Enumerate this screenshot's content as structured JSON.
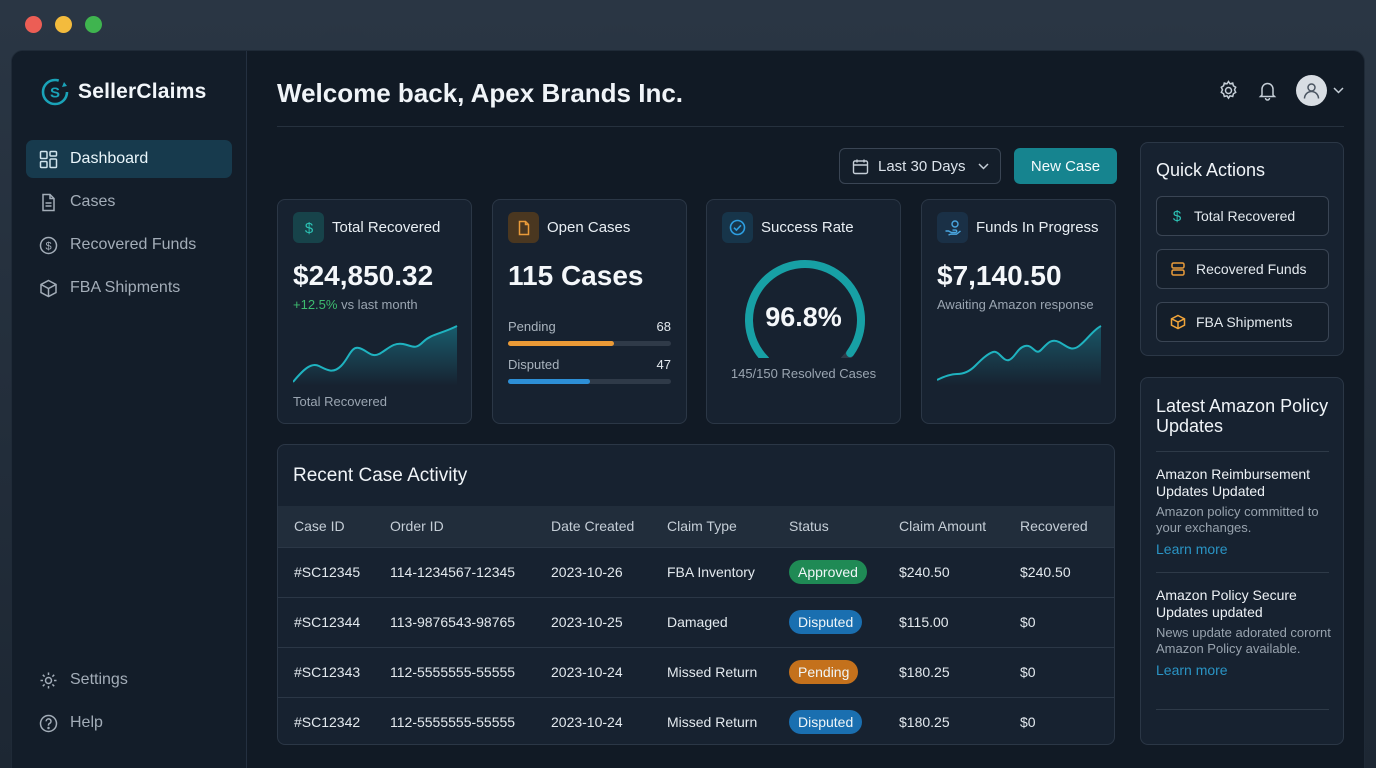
{
  "window": {
    "dots": [
      "#ec5e55",
      "#f3bb3d",
      "#3fb44f"
    ]
  },
  "brand": {
    "name": "SellerClaims",
    "accent": "#1aa3b8"
  },
  "sidebar": {
    "items": [
      {
        "label": "Dashboard",
        "icon": "dashboard-icon",
        "active": true
      },
      {
        "label": "Cases",
        "icon": "document-icon"
      },
      {
        "label": "Recovered Funds",
        "icon": "dollar-circle-icon"
      },
      {
        "label": "FBA Shipments",
        "icon": "box-icon"
      }
    ],
    "bottom": [
      {
        "label": "Settings",
        "icon": "gear-icon"
      },
      {
        "label": "Help",
        "icon": "help-icon"
      }
    ]
  },
  "header": {
    "welcome": "Welcome back, Apex Brands Inc."
  },
  "toolbar": {
    "date_range": "Last 30 Days",
    "new_case": "New Case"
  },
  "cards": {
    "total_recovered": {
      "title": "Total Recovered",
      "value": "$24,850.32",
      "change": "+12.5%",
      "change_suffix": " vs last month",
      "footer": "Total Recovered"
    },
    "open_cases": {
      "title": "Open Cases",
      "value": "115 Cases",
      "pending_label": "Pending",
      "pending_value": "68",
      "disputed_label": "Disputed",
      "disputed_value": "47",
      "pending_fraction": 0.65,
      "disputed_fraction": 0.5
    },
    "success_rate": {
      "title": "Success Rate",
      "value": "96.8%",
      "fraction": 0.968,
      "sub": "145/150 Resolved Cases"
    },
    "funds_progress": {
      "title": "Funds In Progress",
      "value": "$7,140.50",
      "sub": "Awaiting Amazon response"
    }
  },
  "table": {
    "title": "Recent Case Activity",
    "columns": [
      "Case ID",
      "Order ID",
      "Date Created",
      "Claim Type",
      "Status",
      "Claim Amount",
      "Recovered"
    ],
    "rows": [
      {
        "case_id": "#SC12345",
        "order_id": "114-1234567-12345",
        "date": "2023-10-26",
        "type": "FBA Inventory",
        "status": "Approved",
        "amount": "$240.50",
        "recovered": "$240.50"
      },
      {
        "case_id": "#SC12344",
        "order_id": "113-9876543-98765",
        "date": "2023-10-25",
        "type": "Damaged",
        "status": "Disputed",
        "amount": "$115.00",
        "recovered": "$0"
      },
      {
        "case_id": "#SC12343",
        "order_id": "112-5555555-55555",
        "date": "2023-10-24",
        "type": "Missed Return",
        "status": "Pending",
        "amount": "$180.25",
        "recovered": "$0"
      },
      {
        "case_id": "#SC12342",
        "order_id": "112-5555555-55555",
        "date": "2023-10-24",
        "type": "Missed Return",
        "status": "Disputed",
        "amount": "$180.25",
        "recovered": "$0"
      }
    ],
    "status_colors": {
      "Approved": "#1f8a55",
      "Disputed": "#1a6fb0",
      "Pending": "#c4711c"
    }
  },
  "quick_actions": {
    "title": "Quick Actions",
    "items": [
      {
        "label": "Total Recovered",
        "icon": "dollar-icon"
      },
      {
        "label": "Recovered Funds",
        "icon": "stack-icon"
      },
      {
        "label": "FBA Shipments",
        "icon": "box-icon"
      }
    ]
  },
  "policy": {
    "title": "Latest Amazon Policy Updates",
    "items": [
      {
        "heading": "Amazon Reimbursement Updates Updated",
        "text": "Amazon policy committed to your exchanges.",
        "link": "Learn more"
      },
      {
        "heading": "Amazon Policy Secure Updates updated",
        "text": "News update adorated corornt Amazon Policy available.",
        "link": "Learn more"
      }
    ]
  }
}
